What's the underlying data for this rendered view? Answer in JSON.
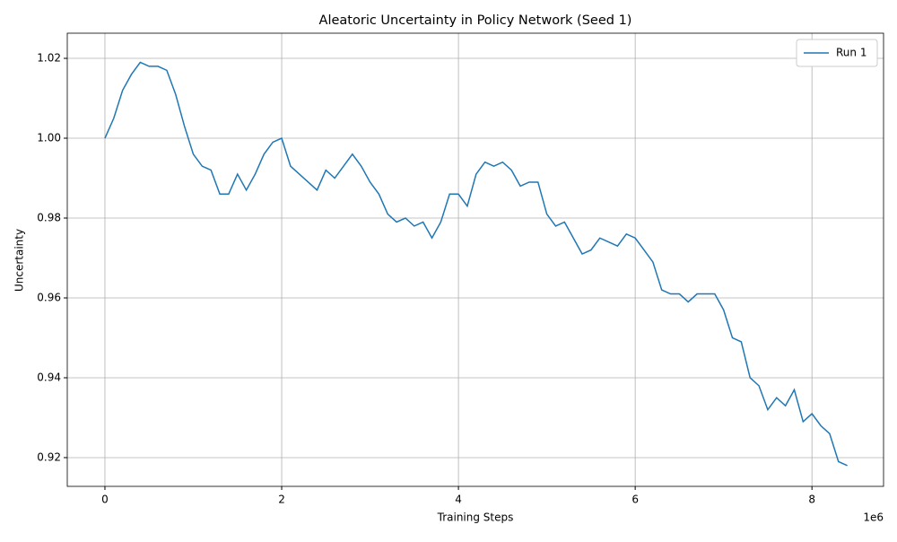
{
  "chart_data": {
    "type": "line",
    "title": "Aleatoric Uncertainty in Policy Network (Seed 1)",
    "x_label": "Training Steps",
    "y_label": "Uncertainty",
    "x_offset_label": "1e6",
    "x": [
      0.0,
      0.1,
      0.2,
      0.3,
      0.4,
      0.5,
      0.6,
      0.7,
      0.8,
      0.9,
      1.0,
      1.1,
      1.2,
      1.3,
      1.4,
      1.5,
      1.6,
      1.7,
      1.8,
      1.9,
      2.0,
      2.1,
      2.2,
      2.3,
      2.4,
      2.5,
      2.6,
      2.7,
      2.8,
      2.9,
      3.0,
      3.1,
      3.2,
      3.3,
      3.4,
      3.5,
      3.6,
      3.7,
      3.8,
      3.9,
      4.0,
      4.1,
      4.2,
      4.3,
      4.4,
      4.5,
      4.6,
      4.7,
      4.8,
      4.9,
      5.0,
      5.1,
      5.2,
      5.3,
      5.4,
      5.5,
      5.6,
      5.7,
      5.8,
      5.9,
      6.0,
      6.1,
      6.2,
      6.3,
      6.4,
      6.5,
      6.6,
      6.7,
      6.8,
      6.9,
      7.0,
      7.1,
      7.2,
      7.3,
      7.4,
      7.5,
      7.6,
      7.7,
      7.8,
      7.9,
      8.0,
      8.1,
      8.2,
      8.3,
      8.4
    ],
    "series": [
      {
        "name": "Run 1",
        "color": "#1f77b4",
        "values": [
          1.0,
          1.005,
          1.012,
          1.016,
          1.019,
          1.018,
          1.018,
          1.017,
          1.011,
          1.003,
          0.996,
          0.993,
          0.992,
          0.986,
          0.986,
          0.991,
          0.987,
          0.991,
          0.996,
          0.999,
          1.0,
          0.993,
          0.991,
          0.989,
          0.987,
          0.992,
          0.99,
          0.993,
          0.996,
          0.993,
          0.989,
          0.986,
          0.981,
          0.979,
          0.98,
          0.978,
          0.979,
          0.975,
          0.979,
          0.986,
          0.986,
          0.983,
          0.991,
          0.994,
          0.993,
          0.994,
          0.992,
          0.988,
          0.989,
          0.989,
          0.981,
          0.978,
          0.979,
          0.975,
          0.971,
          0.972,
          0.975,
          0.974,
          0.973,
          0.976,
          0.975,
          0.972,
          0.969,
          0.962,
          0.961,
          0.961,
          0.959,
          0.961,
          0.961,
          0.961,
          0.957,
          0.95,
          0.949,
          0.94,
          0.938,
          0.932,
          0.935,
          0.933,
          0.937,
          0.929,
          0.931,
          0.928,
          0.926,
          0.919,
          0.918
        ]
      }
    ],
    "xlim": [
      -0.426,
      8.81
    ],
    "ylim": [
      0.9128,
      1.0263
    ],
    "xticks": [
      0,
      2,
      4,
      6,
      8
    ],
    "yticks": [
      {
        "value": 0.92,
        "label": "0.92"
      },
      {
        "value": 0.94,
        "label": "0.94"
      },
      {
        "value": 0.96,
        "label": "0.96"
      },
      {
        "value": 0.98,
        "label": "0.98"
      },
      {
        "value": 1.0,
        "label": "1.00"
      },
      {
        "value": 1.02,
        "label": "1.02"
      }
    ],
    "grid": true,
    "legend": "upper right"
  }
}
